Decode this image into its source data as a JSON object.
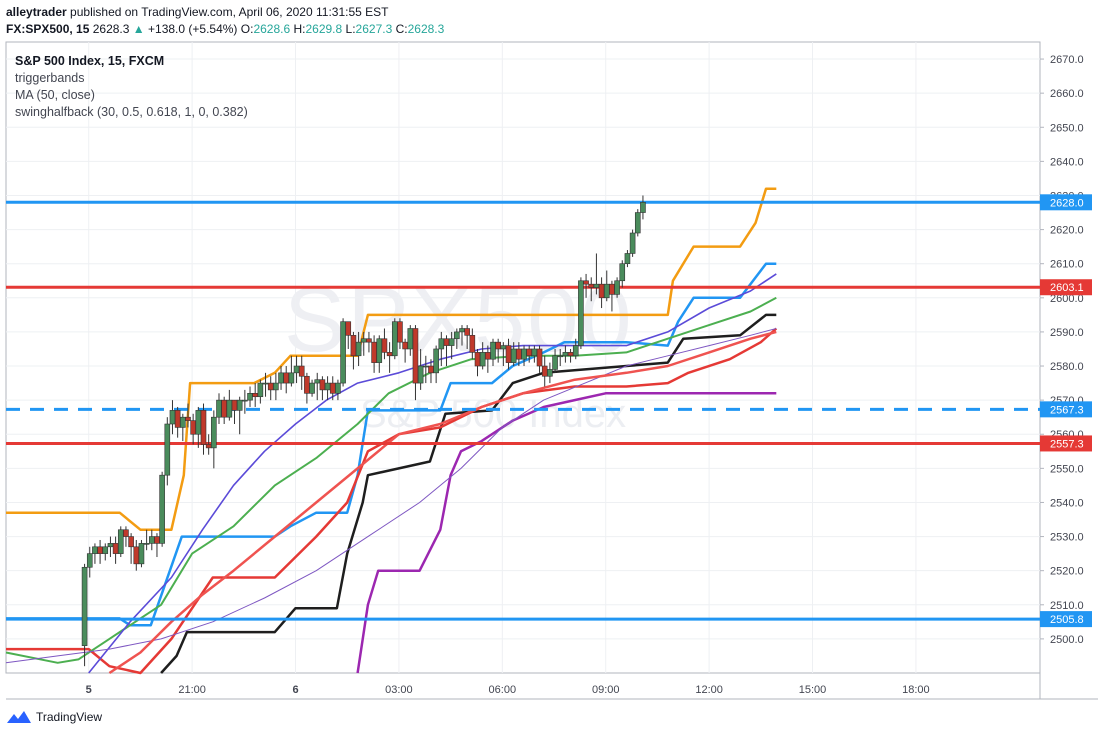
{
  "header": {
    "author": "alleytrader",
    "published": "published on TradingView.com, April 06, 2020 11:31:55 EST",
    "symbol": "FX:SPX500, 15",
    "last": "2628.3",
    "change": "+138.0 (+5.54%)",
    "o_label": "O:",
    "o": "2628.6",
    "h_label": "H:",
    "h": "2629.8",
    "l_label": "L:",
    "l": "2627.3",
    "c_label": "C:",
    "c": "2628.3"
  },
  "legend": {
    "title": "S&P 500 Index, 15, FXCM",
    "items": [
      "triggerbands",
      "MA (50, close)",
      "swinghalfback (30, 0.5, 0.618, 1, 0, 0.382)"
    ]
  },
  "watermark": {
    "main": "SPX500",
    "sub": "S&P 500 Index"
  },
  "footer": {
    "brand": "TradingView"
  },
  "colors": {
    "up": "#4a8c5c",
    "down": "#c0392b",
    "orange": "#f39c12",
    "blue": "#2196f3",
    "red": "#e53935",
    "black": "#1e1e1e",
    "purple": "#9c27b0",
    "green": "#4caf50",
    "violet": "#5b4bd8"
  },
  "chart_data": {
    "type": "candlestick",
    "ylim": [
      2490,
      2675
    ],
    "xlim": [
      0,
      100
    ],
    "y_ticks": [
      "2500.0",
      "2510.0",
      "2520.0",
      "2530.0",
      "2540.0",
      "2550.0",
      "2560.0",
      "2570.0",
      "2580.0",
      "2590.0",
      "2600.0",
      "2610.0",
      "2620.0",
      "2630.0",
      "2640.0",
      "2650.0",
      "2660.0",
      "2670.0"
    ],
    "x_ticks": [
      {
        "label": "5",
        "x": 8
      },
      {
        "label": "21:00",
        "x": 18
      },
      {
        "label": "6",
        "x": 28
      },
      {
        "label": "03:00",
        "x": 38
      },
      {
        "label": "06:00",
        "x": 48
      },
      {
        "label": "09:00",
        "x": 58
      },
      {
        "label": "12:00",
        "x": 68
      },
      {
        "label": "15:00",
        "x": 78
      },
      {
        "label": "18:00",
        "x": 88
      }
    ],
    "price_labels": [
      {
        "value": 2628.0,
        "label": "2628.0",
        "color": "#2196f3",
        "style": "solid"
      },
      {
        "value": 2603.1,
        "label": "2603.1",
        "color": "#e53935",
        "style": "solid"
      },
      {
        "value": 2567.3,
        "label": "2567.3",
        "color": "#2196f3",
        "style": "dashed"
      },
      {
        "value": 2557.3,
        "label": "2557.3",
        "color": "#e53935",
        "style": "solid"
      },
      {
        "value": 2505.8,
        "label": "2505.8",
        "color": "#2196f3",
        "style": "solid"
      }
    ],
    "candles": [
      [
        7.6,
        2498,
        2521,
        2492,
        2522
      ],
      [
        8.1,
        2521,
        2525,
        2518,
        2527
      ],
      [
        8.6,
        2525,
        2527,
        2522,
        2528
      ],
      [
        9.1,
        2527,
        2525,
        2522,
        2529
      ],
      [
        9.6,
        2525,
        2527,
        2523,
        2528
      ],
      [
        10.1,
        2527,
        2528,
        2524,
        2530
      ],
      [
        10.6,
        2528,
        2525,
        2522,
        2530
      ],
      [
        11.1,
        2525,
        2532,
        2524,
        2533
      ],
      [
        11.6,
        2532,
        2530,
        2527,
        2533
      ],
      [
        12.1,
        2530,
        2527,
        2522,
        2531
      ],
      [
        12.6,
        2527,
        2522,
        2520,
        2529
      ],
      [
        13.1,
        2522,
        2528,
        2521,
        2529
      ],
      [
        13.6,
        2528,
        2528,
        2526,
        2532
      ],
      [
        14.1,
        2528,
        2530,
        2526,
        2532
      ],
      [
        14.6,
        2530,
        2528,
        2524,
        2531
      ],
      [
        15.1,
        2528,
        2548,
        2527,
        2549
      ],
      [
        15.6,
        2548,
        2563,
        2545,
        2565
      ],
      [
        16.1,
        2563,
        2567,
        2560,
        2570
      ],
      [
        16.6,
        2567,
        2562,
        2559,
        2568
      ],
      [
        17.1,
        2562,
        2565,
        2558,
        2566
      ],
      [
        17.6,
        2565,
        2564,
        2562,
        2569
      ],
      [
        18.1,
        2564,
        2560,
        2557,
        2566
      ],
      [
        18.6,
        2560,
        2567,
        2556,
        2568
      ],
      [
        19.1,
        2567,
        2557,
        2554,
        2569
      ],
      [
        19.6,
        2557,
        2556,
        2554,
        2560
      ],
      [
        20.1,
        2556,
        2565,
        2550,
        2567
      ],
      [
        20.6,
        2565,
        2570,
        2563,
        2572
      ],
      [
        21.1,
        2570,
        2565,
        2563,
        2571
      ],
      [
        21.6,
        2565,
        2570,
        2564,
        2573
      ],
      [
        22.1,
        2570,
        2567,
        2563,
        2570
      ],
      [
        22.6,
        2567,
        2570,
        2560,
        2571
      ],
      [
        23.1,
        2570,
        2570,
        2566,
        2573
      ],
      [
        23.6,
        2570,
        2572,
        2568,
        2574
      ],
      [
        24.1,
        2572,
        2571,
        2568,
        2575
      ],
      [
        24.6,
        2571,
        2575,
        2569,
        2576
      ],
      [
        25.1,
        2575,
        2575,
        2571,
        2578
      ],
      [
        25.6,
        2575,
        2573,
        2570,
        2577
      ],
      [
        26.1,
        2573,
        2575,
        2570,
        2578
      ],
      [
        26.6,
        2575,
        2578,
        2573,
        2580
      ],
      [
        27.1,
        2578,
        2575,
        2572,
        2580
      ],
      [
        27.6,
        2575,
        2578,
        2574,
        2583
      ],
      [
        28.1,
        2578,
        2580,
        2575,
        2583
      ],
      [
        28.6,
        2580,
        2577,
        2573,
        2583
      ],
      [
        29.1,
        2577,
        2572,
        2569,
        2578
      ],
      [
        29.6,
        2572,
        2575,
        2571,
        2576
      ],
      [
        30.1,
        2575,
        2576,
        2570,
        2578
      ],
      [
        30.6,
        2576,
        2573,
        2570,
        2577
      ],
      [
        31.1,
        2573,
        2575,
        2570,
        2577
      ],
      [
        31.6,
        2575,
        2572,
        2570,
        2577
      ],
      [
        32.1,
        2572,
        2575,
        2570,
        2576
      ],
      [
        32.6,
        2575,
        2593,
        2574,
        2594
      ],
      [
        33.1,
        2593,
        2589,
        2585,
        2593
      ],
      [
        33.6,
        2589,
        2583,
        2579,
        2590
      ],
      [
        34.1,
        2583,
        2587,
        2580,
        2590
      ],
      [
        34.6,
        2587,
        2588,
        2583,
        2590
      ],
      [
        35.1,
        2588,
        2587,
        2584,
        2590
      ],
      [
        35.6,
        2587,
        2581,
        2578,
        2589
      ],
      [
        36.1,
        2581,
        2588,
        2578,
        2589
      ],
      [
        36.6,
        2588,
        2584,
        2582,
        2591
      ],
      [
        37.1,
        2584,
        2583,
        2578,
        2587
      ],
      [
        37.6,
        2583,
        2593,
        2582,
        2594
      ],
      [
        38.1,
        2593,
        2587,
        2585,
        2594
      ],
      [
        38.6,
        2587,
        2585,
        2581,
        2588
      ],
      [
        39.1,
        2585,
        2591,
        2583,
        2592
      ],
      [
        39.6,
        2591,
        2575,
        2570,
        2592
      ],
      [
        40.1,
        2575,
        2580,
        2573,
        2585
      ],
      [
        40.6,
        2580,
        2580,
        2575,
        2583
      ],
      [
        41.1,
        2580,
        2578,
        2575,
        2582
      ],
      [
        41.6,
        2578,
        2585,
        2575,
        2586
      ],
      [
        42.1,
        2585,
        2588,
        2580,
        2590
      ],
      [
        42.6,
        2588,
        2586,
        2580,
        2589
      ],
      [
        43.1,
        2586,
        2588,
        2582,
        2590
      ],
      [
        43.6,
        2588,
        2590,
        2585,
        2591
      ],
      [
        44.1,
        2590,
        2591,
        2586,
        2592
      ],
      [
        44.6,
        2591,
        2589,
        2585,
        2592
      ],
      [
        45.1,
        2589,
        2584,
        2582,
        2591
      ],
      [
        45.6,
        2584,
        2580,
        2577,
        2585
      ],
      [
        46.1,
        2580,
        2584,
        2579,
        2587
      ],
      [
        46.6,
        2584,
        2582,
        2578,
        2586
      ],
      [
        47.1,
        2582,
        2587,
        2580,
        2588
      ],
      [
        47.6,
        2587,
        2585,
        2581,
        2588
      ],
      [
        48.1,
        2585,
        2586,
        2580,
        2587
      ],
      [
        48.6,
        2586,
        2581,
        2579,
        2588
      ],
      [
        49.1,
        2581,
        2585,
        2580,
        2587
      ],
      [
        49.6,
        2585,
        2582,
        2580,
        2587
      ],
      [
        50.1,
        2582,
        2585,
        2580,
        2586
      ],
      [
        50.6,
        2585,
        2583,
        2581,
        2586
      ],
      [
        51.1,
        2583,
        2585,
        2581,
        2586
      ],
      [
        51.6,
        2585,
        2580,
        2578,
        2586
      ],
      [
        52.1,
        2580,
        2577,
        2574,
        2583
      ],
      [
        52.6,
        2577,
        2579,
        2575,
        2581
      ],
      [
        53.1,
        2579,
        2583,
        2578,
        2585
      ],
      [
        53.6,
        2583,
        2583,
        2580,
        2585
      ],
      [
        54.1,
        2583,
        2584,
        2581,
        2586
      ],
      [
        54.6,
        2584,
        2583,
        2581,
        2585
      ],
      [
        55.1,
        2583,
        2586,
        2582,
        2588
      ],
      [
        55.6,
        2586,
        2605,
        2585,
        2606
      ],
      [
        56.1,
        2605,
        2604,
        2600,
        2607
      ],
      [
        56.6,
        2604,
        2603,
        2599,
        2606
      ],
      [
        57.1,
        2603,
        2604,
        2601,
        2613
      ],
      [
        57.6,
        2604,
        2600,
        2597,
        2606
      ],
      [
        58.1,
        2600,
        2604,
        2599,
        2608
      ],
      [
        58.6,
        2604,
        2601,
        2596,
        2605
      ],
      [
        59.1,
        2601,
        2605,
        2600,
        2606
      ],
      [
        59.6,
        2605,
        2610,
        2603,
        2611
      ],
      [
        60.1,
        2610,
        2613,
        2609,
        2614
      ],
      [
        60.6,
        2613,
        2619,
        2612,
        2620
      ],
      [
        61.1,
        2619,
        2625,
        2618,
        2626
      ],
      [
        61.6,
        2625,
        2628,
        2623,
        2630
      ]
    ]
  }
}
